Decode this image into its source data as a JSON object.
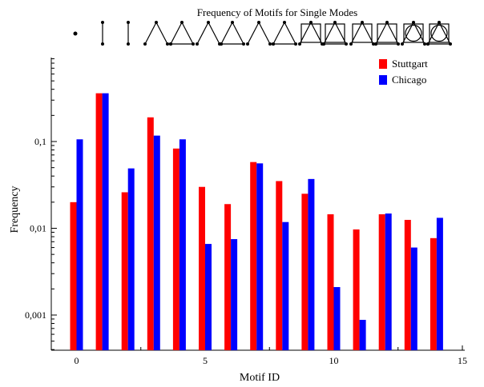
{
  "chart_data": {
    "type": "bar",
    "title": "Frequency of Motifs for Single Modes",
    "xlabel": "Motif ID",
    "ylabel": "Frequency",
    "y_scale": "log",
    "ylim": [
      0.0005,
      1.0
    ],
    "xlim": [
      -0.5,
      15
    ],
    "x_ticks": [
      "0",
      "5",
      "10",
      "15"
    ],
    "y_ticks": [
      "0,001",
      "0,01",
      "0,1"
    ],
    "legend_position": "top-right",
    "grid": false,
    "categories": [
      0,
      1,
      2,
      3,
      4,
      5,
      6,
      7,
      8,
      9,
      10,
      11,
      12,
      13,
      14
    ],
    "series": [
      {
        "name": "Stuttgart",
        "color": "#ff0000",
        "values": [
          0.02,
          0.36,
          0.026,
          0.19,
          0.083,
          0.03,
          0.019,
          0.058,
          0.035,
          0.025,
          0.0145,
          0.0097,
          0.0145,
          0.0125,
          0.0077
        ]
      },
      {
        "name": "Chicago",
        "color": "#0000ff",
        "values": [
          0.106,
          0.36,
          0.049,
          0.117,
          0.106,
          0.0066,
          0.0075,
          0.056,
          0.0118,
          0.037,
          0.0021,
          0.00088,
          0.0148,
          0.006,
          0.0132
        ]
      }
    ]
  }
}
